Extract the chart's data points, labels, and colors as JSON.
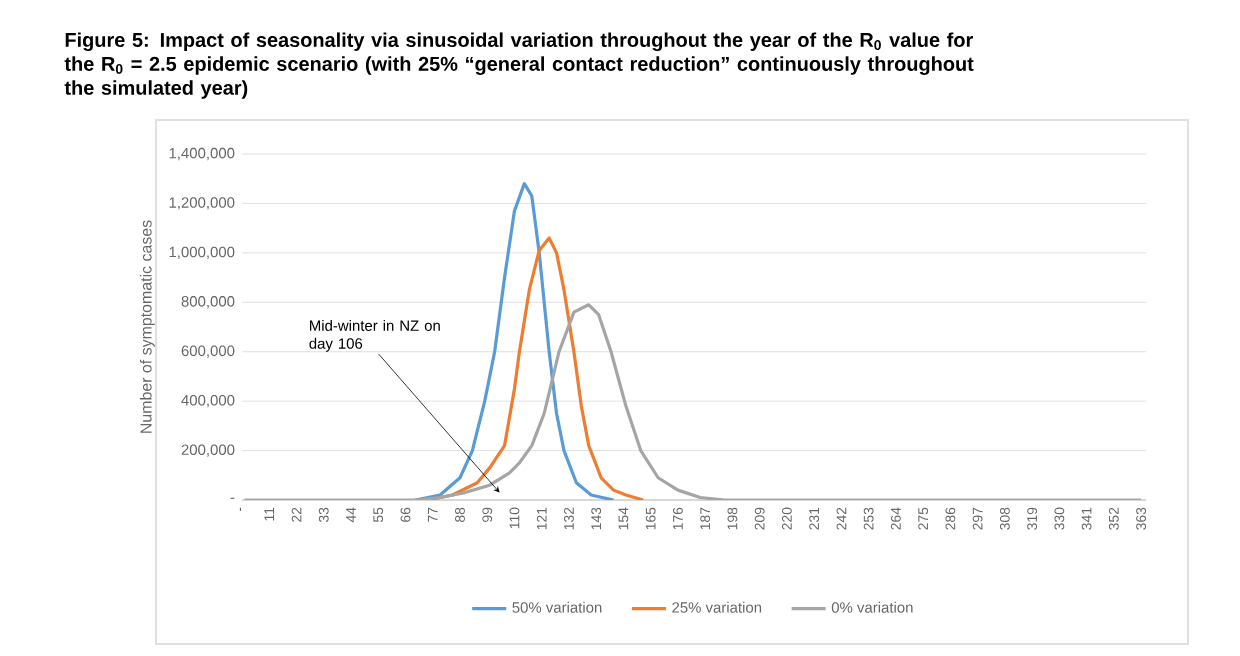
{
  "chart_data": {
    "type": "line",
    "title": "Figure 5: Impact of seasonality via sinusoidal variation throughout the year of the R$_{0}$ value for the R$_{0}$ = 2.5 epidemic scenario (with 25% “general contact reduction” continuously throughout the simulated year)",
    "ylabel": "Number of symptomatic cases",
    "xlim": [
      0,
      365
    ],
    "xticks": [
      {
        "value": 0,
        "label": "-"
      },
      11,
      22,
      33,
      44,
      55,
      66,
      77,
      88,
      99,
      110,
      121,
      132,
      143,
      154,
      165,
      176,
      187,
      198,
      209,
      220,
      231,
      242,
      253,
      264,
      275,
      286,
      297,
      308,
      319,
      330,
      341,
      352,
      363
    ],
    "ylim": [
      0,
      1400000
    ],
    "yticks": [
      {
        "value": 0,
        "label": "-"
      },
      {
        "value": 200000,
        "label": "200,000"
      },
      {
        "value": 400000,
        "label": "400,000"
      },
      {
        "value": 600000,
        "label": "600,000"
      },
      {
        "value": 800000,
        "label": "800,000"
      },
      {
        "value": 1000000,
        "label": "1,000,000"
      },
      {
        "value": 1200000,
        "label": "1,200,000"
      },
      {
        "value": 1400000,
        "label": "1,400,000"
      }
    ],
    "grid": "y",
    "legend": "bottom",
    "marker": "none",
    "line_style": "solid",
    "series": [
      {
        "name": "50% variation",
        "color": "#5b9bd5",
        "x": [
          70,
          80,
          88,
          93,
          98,
          102,
          106,
          110,
          114,
          117,
          120,
          124,
          127,
          130,
          135,
          141,
          150
        ],
        "values": [
          0,
          20000,
          90000,
          200000,
          400000,
          600000,
          900000,
          1170000,
          1280000,
          1230000,
          1000000,
          600000,
          350000,
          200000,
          70000,
          20000,
          0
        ]
      },
      {
        "name": "25% variation",
        "color": "#ed7d31",
        "x": [
          75,
          85,
          95,
          100,
          106,
          110,
          112,
          116,
          120,
          124,
          127,
          130,
          134,
          137,
          140,
          145,
          150,
          155,
          162
        ],
        "values": [
          0,
          20000,
          70000,
          130000,
          220000,
          450000,
          600000,
          850000,
          1010000,
          1060000,
          1000000,
          850000,
          600000,
          380000,
          220000,
          90000,
          40000,
          20000,
          0
        ]
      },
      {
        "name": "0% variation",
        "color": "#a5a5a5",
        "x": [
          1,
          60,
          70,
          80,
          90,
          100,
          108,
          112,
          117,
          122,
          128,
          134,
          140,
          144,
          149,
          155,
          161,
          168,
          176,
          185,
          195,
          205,
          363
        ],
        "values": [
          0,
          0,
          0,
          10000,
          30000,
          60000,
          110000,
          150000,
          220000,
          350000,
          600000,
          760000,
          790000,
          750000,
          600000,
          380000,
          200000,
          90000,
          40000,
          10000,
          0,
          0,
          0
        ]
      }
    ],
    "annotations": [
      {
        "text": "Mid-winter in NZ on day 106",
        "x": 104,
        "y": 30000
      }
    ]
  }
}
